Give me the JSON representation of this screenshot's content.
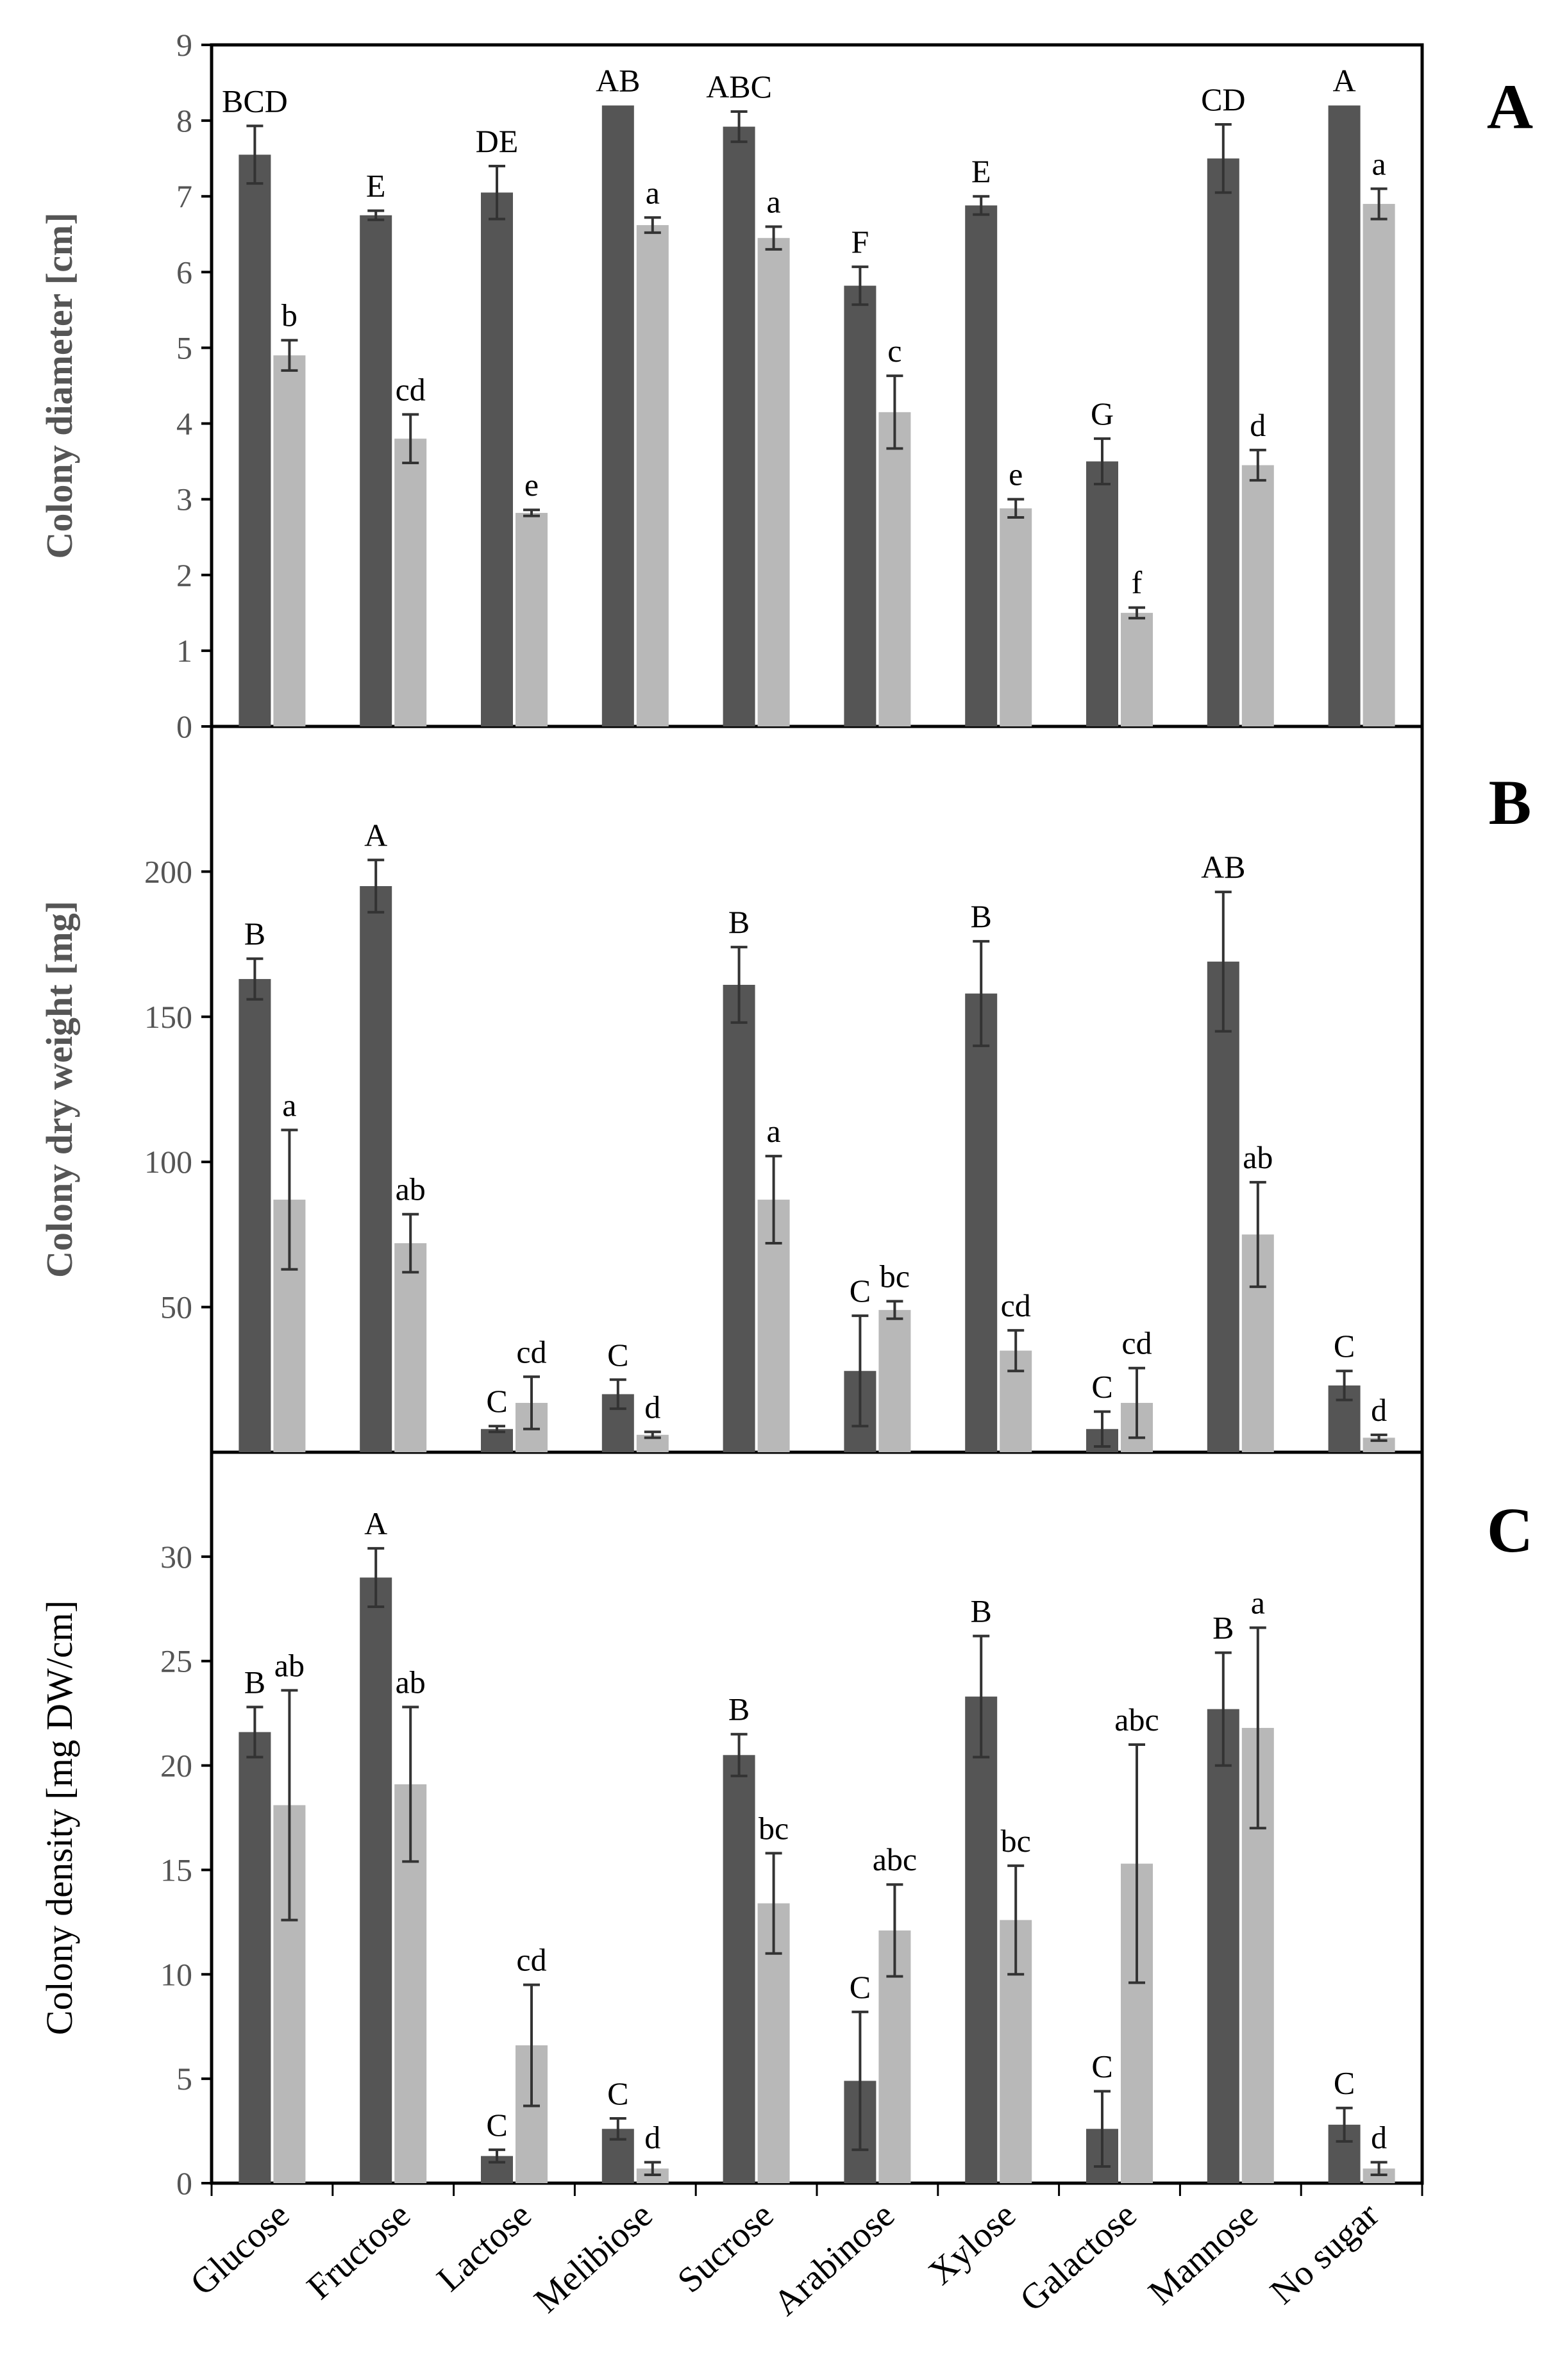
{
  "colors": {
    "dark_series": "#555555",
    "light_series": "#b8b8b8",
    "axis": "#000000",
    "tick_text": "#555555",
    "frame": "#000000"
  },
  "chart_data": [
    {
      "type": "bar",
      "panel": "A",
      "ylabel": "Colony diameter [cm]",
      "ylim": [
        0,
        9
      ],
      "yticks": [
        0,
        1,
        2,
        3,
        4,
        5,
        6,
        7,
        8,
        9
      ],
      "categories": [
        "Glucose",
        "Fructose",
        "Lactose",
        "Melibiose",
        "Sucrose",
        "Arabinose",
        "Xylose",
        "Galactose",
        "Mannose",
        "No sugar"
      ],
      "series": [
        {
          "values": [
            7.55,
            6.75,
            7.05,
            8.2,
            7.92,
            5.82,
            6.88,
            3.5,
            7.5,
            8.2
          ],
          "errors": [
            0.38,
            0.06,
            0.35,
            0.0,
            0.2,
            0.25,
            0.12,
            0.3,
            0.45,
            0.0
          ],
          "labels": [
            "BCD",
            "E",
            "DE",
            "AB",
            "ABC",
            "F",
            "E",
            "G",
            "CD",
            "A"
          ]
        },
        {
          "values": [
            4.9,
            3.8,
            2.82,
            6.62,
            6.45,
            4.15,
            2.88,
            1.5,
            3.45,
            6.9
          ],
          "errors": [
            0.2,
            0.32,
            0.04,
            0.1,
            0.15,
            0.48,
            0.12,
            0.07,
            0.2,
            0.2
          ],
          "labels": [
            "b",
            "cd",
            "e",
            "a",
            "a",
            "c",
            "e",
            "f",
            "d",
            "a"
          ]
        }
      ]
    },
    {
      "type": "bar",
      "panel": "B",
      "ylabel": "Colony dry weight [mg]",
      "ylim": [
        0,
        250
      ],
      "yticks": [
        50,
        100,
        150,
        200
      ],
      "categories": [
        "Glucose",
        "Fructose",
        "Lactose",
        "Melibiose",
        "Sucrose",
        "Arabinose",
        "Xylose",
        "Galactose",
        "Mannose",
        "No sugar"
      ],
      "series": [
        {
          "values": [
            163,
            195,
            8,
            20,
            161,
            28,
            158,
            8,
            169,
            23
          ],
          "errors": [
            7,
            9,
            1,
            5,
            13,
            19,
            18,
            6,
            24,
            5
          ],
          "labels": [
            "B",
            "A",
            "C",
            "C",
            "B",
            "C",
            "B",
            "C",
            "AB",
            "C"
          ]
        },
        {
          "values": [
            87,
            72,
            17,
            6,
            87,
            49,
            35,
            17,
            75,
            5
          ],
          "errors": [
            24,
            10,
            9,
            1,
            15,
            3,
            7,
            12,
            18,
            1
          ],
          "labels": [
            "a",
            "ab",
            "cd",
            "d",
            "a",
            "bc",
            "cd",
            "cd",
            "ab",
            "d"
          ]
        }
      ]
    },
    {
      "type": "bar",
      "panel": "C",
      "ylabel": "Colony density [mg DW/cm]",
      "ylim": [
        0,
        35
      ],
      "yticks": [
        0,
        5,
        10,
        15,
        20,
        25,
        30
      ],
      "categories": [
        "Glucose",
        "Fructose",
        "Lactose",
        "Melibiose",
        "Sucrose",
        "Arabinose",
        "Xylose",
        "Galactose",
        "Mannose",
        "No sugar"
      ],
      "series": [
        {
          "values": [
            21.6,
            29.0,
            1.3,
            2.6,
            20.5,
            4.9,
            23.3,
            2.6,
            22.7,
            2.8
          ],
          "errors": [
            1.2,
            1.4,
            0.3,
            0.5,
            1.0,
            3.3,
            2.9,
            1.8,
            2.7,
            0.8
          ],
          "labels": [
            "B",
            "A",
            "C",
            "C",
            "B",
            "C",
            "B",
            "C",
            "B",
            "C"
          ]
        },
        {
          "values": [
            18.1,
            19.1,
            6.6,
            0.7,
            13.4,
            12.1,
            12.6,
            15.3,
            21.8,
            0.7
          ],
          "errors": [
            5.5,
            3.7,
            2.9,
            0.3,
            2.4,
            2.2,
            2.6,
            5.7,
            4.8,
            0.3
          ],
          "labels": [
            "ab",
            "ab",
            "cd",
            "d",
            "bc",
            "abc",
            "bc",
            "abc",
            "a",
            "d"
          ]
        }
      ]
    }
  ]
}
